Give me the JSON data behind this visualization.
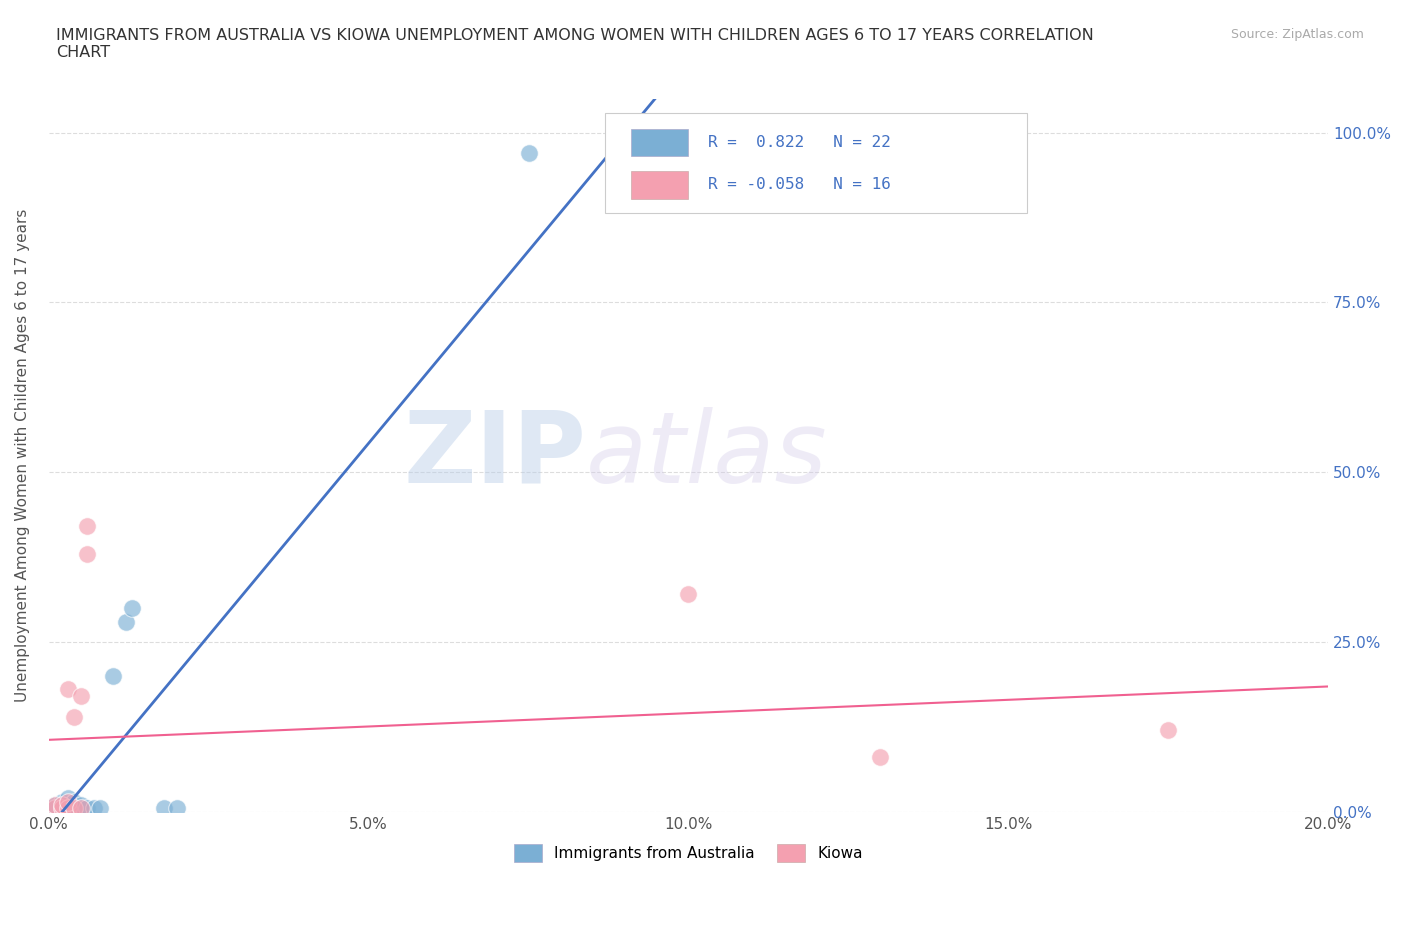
{
  "title": "IMMIGRANTS FROM AUSTRALIA VS KIOWA UNEMPLOYMENT AMONG WOMEN WITH CHILDREN AGES 6 TO 17 YEARS CORRELATION\nCHART",
  "source": "Source: ZipAtlas.com",
  "ylabel": "Unemployment Among Women with Children Ages 6 to 17 years",
  "xlim": [
    0.0,
    0.2
  ],
  "ylim": [
    0.0,
    1.05
  ],
  "xticks": [
    0.0,
    0.05,
    0.1,
    0.15,
    0.2
  ],
  "xtick_labels": [
    "0.0%",
    "5.0%",
    "10.0%",
    "15.0%",
    "20.0%"
  ],
  "yticks": [
    0.0,
    0.25,
    0.5,
    0.75,
    1.0
  ],
  "ytick_labels": [
    "0.0%",
    "25.0%",
    "50.0%",
    "75.0%",
    "100.0%"
  ],
  "australia_color": "#7BAFD4",
  "kiowa_color": "#F4A0B0",
  "trend_australia_color": "#4472C4",
  "trend_kiowa_color": "#F06090",
  "australia_points": [
    [
      0.001,
      0.005
    ],
    [
      0.001,
      0.01
    ],
    [
      0.002,
      0.005
    ],
    [
      0.002,
      0.01
    ],
    [
      0.002,
      0.015
    ],
    [
      0.003,
      0.005
    ],
    [
      0.003,
      0.01
    ],
    [
      0.003,
      0.02
    ],
    [
      0.004,
      0.005
    ],
    [
      0.004,
      0.015
    ],
    [
      0.005,
      0.005
    ],
    [
      0.005,
      0.01
    ],
    [
      0.006,
      0.005
    ],
    [
      0.007,
      0.005
    ],
    [
      0.008,
      0.005
    ],
    [
      0.01,
      0.2
    ],
    [
      0.012,
      0.28
    ],
    [
      0.013,
      0.3
    ],
    [
      0.018,
      0.005
    ],
    [
      0.02,
      0.005
    ],
    [
      0.075,
      0.97
    ],
    [
      0.095,
      0.97
    ]
  ],
  "kiowa_points": [
    [
      0.001,
      0.005
    ],
    [
      0.001,
      0.01
    ],
    [
      0.002,
      0.005
    ],
    [
      0.002,
      0.01
    ],
    [
      0.003,
      0.005
    ],
    [
      0.003,
      0.015
    ],
    [
      0.003,
      0.18
    ],
    [
      0.004,
      0.005
    ],
    [
      0.004,
      0.14
    ],
    [
      0.005,
      0.005
    ],
    [
      0.005,
      0.17
    ],
    [
      0.006,
      0.38
    ],
    [
      0.006,
      0.42
    ],
    [
      0.1,
      0.32
    ],
    [
      0.13,
      0.08
    ],
    [
      0.175,
      0.12
    ]
  ],
  "R_australia": 0.822,
  "N_australia": 22,
  "R_kiowa": -0.058,
  "N_kiowa": 16,
  "legend_labels": [
    "Immigrants from Australia",
    "Kiowa"
  ],
  "watermark_zip": "ZIP",
  "watermark_atlas": "atlas",
  "background_color": "#FFFFFF",
  "grid_color": "#DDDDDD",
  "tick_color": "#4472C4"
}
